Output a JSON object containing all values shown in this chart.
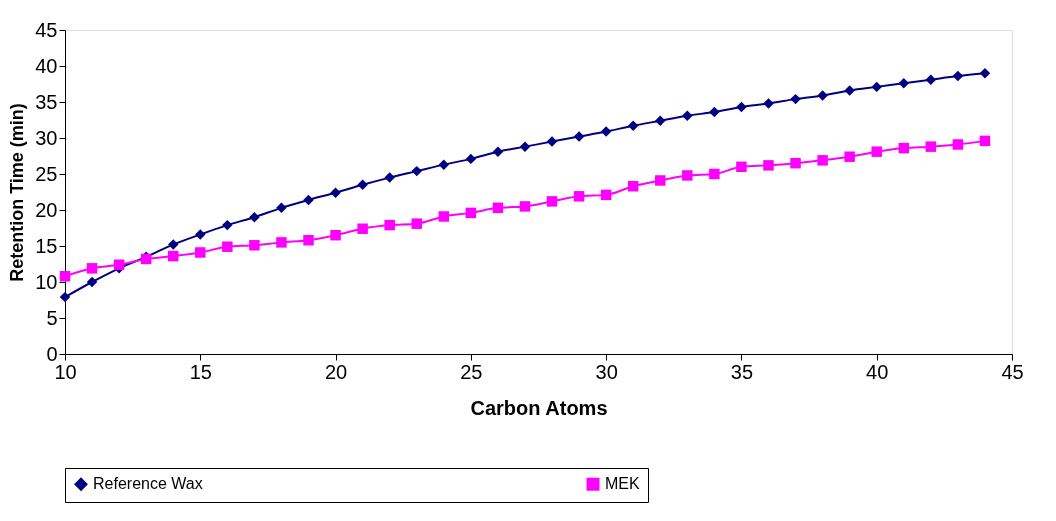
{
  "chart_data": {
    "type": "line",
    "xlabel": "Carbon Atoms",
    "ylabel": "Retention Time (min)",
    "x": [
      10,
      11,
      12,
      13,
      14,
      15,
      16,
      17,
      18,
      19,
      20,
      21,
      22,
      23,
      24,
      25,
      26,
      27,
      28,
      29,
      30,
      31,
      32,
      33,
      34,
      35,
      36,
      37,
      38,
      39,
      40,
      41,
      42,
      43,
      44
    ],
    "series": [
      {
        "name": "Reference Wax",
        "color": "#000080",
        "marker": "diamond",
        "values": [
          7.9,
          10.0,
          11.9,
          13.5,
          15.2,
          16.6,
          17.9,
          19.0,
          20.3,
          21.4,
          22.4,
          23.5,
          24.5,
          25.4,
          26.3,
          27.1,
          28.1,
          28.8,
          29.5,
          30.2,
          30.9,
          31.7,
          32.4,
          33.1,
          33.6,
          34.3,
          34.8,
          35.4,
          35.9,
          36.6,
          37.1,
          37.6,
          38.1,
          38.6,
          39.0
        ]
      },
      {
        "name": "MEK",
        "color": "#ff00ff",
        "marker": "square",
        "values": [
          10.8,
          11.9,
          12.4,
          13.2,
          13.6,
          14.1,
          14.9,
          15.1,
          15.5,
          15.8,
          16.5,
          17.4,
          17.9,
          18.1,
          19.1,
          19.6,
          20.3,
          20.5,
          21.2,
          21.9,
          22.1,
          23.3,
          24.1,
          24.8,
          25.0,
          26.0,
          26.2,
          26.5,
          26.9,
          27.4,
          28.1,
          28.6,
          28.8,
          29.1,
          29.6
        ]
      }
    ],
    "xlim": [
      10,
      45
    ],
    "xticks": [
      10,
      15,
      20,
      25,
      30,
      35,
      40,
      45
    ],
    "ylim": [
      0,
      45
    ],
    "yticks": [
      0,
      5,
      10,
      15,
      20,
      25,
      30,
      35,
      40,
      45
    ],
    "grid": false,
    "legend": "bottom",
    "line_style": "solid"
  }
}
